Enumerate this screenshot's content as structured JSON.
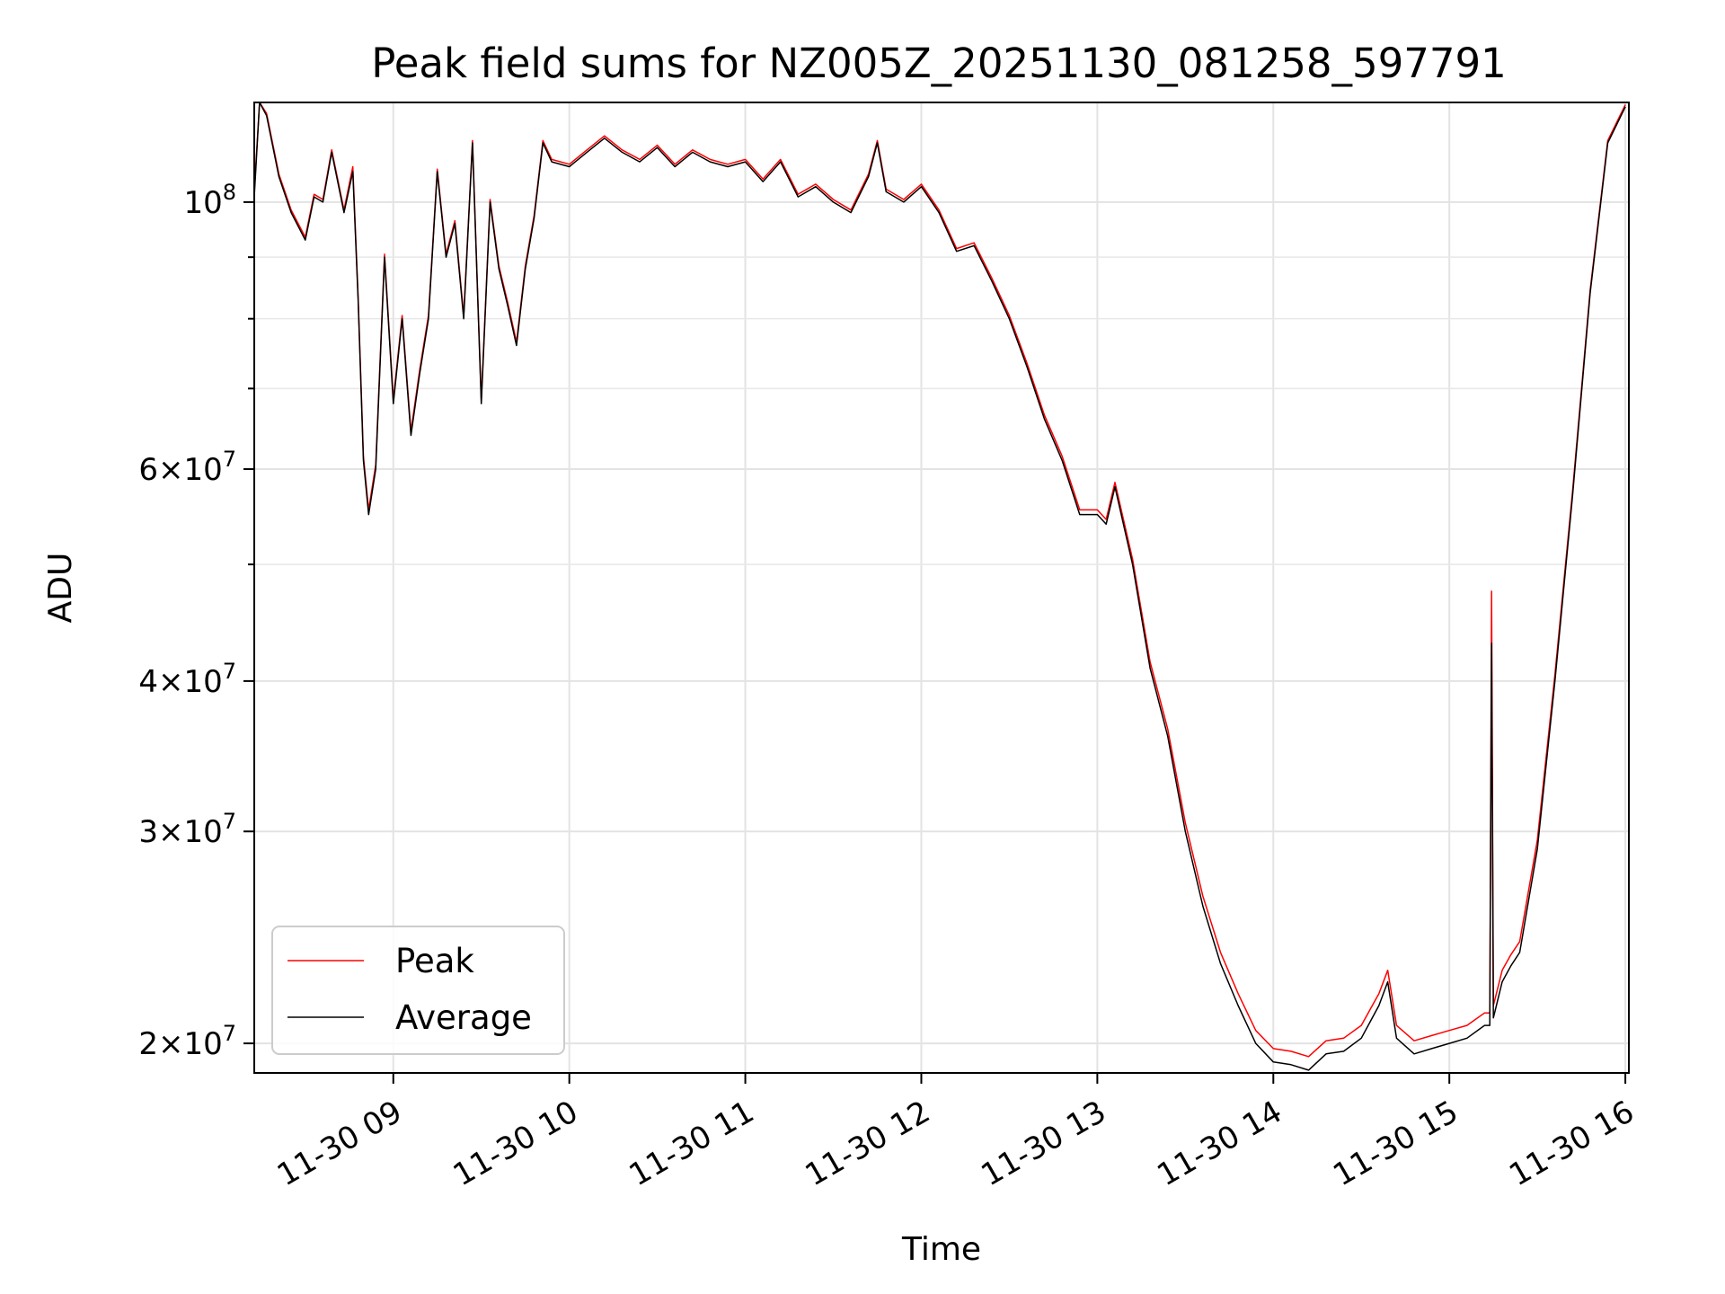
{
  "chart_data": {
    "type": "line",
    "title": "Peak field sums for NZ005Z_20251130_081258_597791",
    "xlabel": "Time",
    "ylabel": "ADU",
    "yscale": "log",
    "grid": true,
    "legend_location": "lower-left",
    "xlim": [
      8.21,
      16.02
    ],
    "ylim": [
      18900000,
      121000000
    ],
    "x_ticks": [
      {
        "value": 9,
        "label": "11-30 09"
      },
      {
        "value": 10,
        "label": "11-30 10"
      },
      {
        "value": 11,
        "label": "11-30 11"
      },
      {
        "value": 12,
        "label": "11-30 12"
      },
      {
        "value": 13,
        "label": "11-30 13"
      },
      {
        "value": 14,
        "label": "11-30 14"
      },
      {
        "value": 15,
        "label": "11-30 15"
      },
      {
        "value": 16,
        "label": "11-30 16"
      }
    ],
    "y_ticks": [
      {
        "value": 20000000,
        "mantissa": "2",
        "exponent": "7"
      },
      {
        "value": 30000000,
        "mantissa": "3",
        "exponent": "7"
      },
      {
        "value": 40000000,
        "mantissa": "4",
        "exponent": "7"
      },
      {
        "value": 60000000,
        "mantissa": "6",
        "exponent": "7"
      },
      {
        "value": 100000000,
        "mantissa": "",
        "exponent": "8"
      }
    ],
    "y_minor_grid": [
      50000000,
      70000000,
      80000000,
      90000000
    ],
    "x_unit": "hours since 2025-11-30 00:00",
    "series": [
      {
        "name": "Average",
        "color": "#000000",
        "x": [
          8.21,
          8.24,
          8.28,
          8.35,
          8.42,
          8.5,
          8.55,
          8.6,
          8.65,
          8.72,
          8.77,
          8.8,
          8.83,
          8.86,
          8.9,
          8.95,
          9.0,
          9.05,
          9.1,
          9.15,
          9.2,
          9.25,
          9.3,
          9.35,
          9.4,
          9.45,
          9.5,
          9.55,
          9.6,
          9.65,
          9.7,
          9.75,
          9.8,
          9.85,
          9.9,
          10.0,
          10.1,
          10.2,
          10.3,
          10.4,
          10.5,
          10.6,
          10.7,
          10.8,
          10.9,
          11.0,
          11.1,
          11.2,
          11.3,
          11.4,
          11.5,
          11.6,
          11.7,
          11.75,
          11.8,
          11.9,
          12.0,
          12.1,
          12.2,
          12.3,
          12.4,
          12.5,
          12.6,
          12.7,
          12.8,
          12.9,
          13.0,
          13.05,
          13.1,
          13.2,
          13.3,
          13.4,
          13.5,
          13.6,
          13.7,
          13.8,
          13.9,
          14.0,
          14.1,
          14.2,
          14.3,
          14.4,
          14.5,
          14.6,
          14.65,
          14.7,
          14.8,
          14.9,
          15.0,
          15.1,
          15.2,
          15.23,
          15.24,
          15.25,
          15.3,
          15.35,
          15.4,
          15.5,
          15.6,
          15.7,
          15.8,
          15.9,
          16.0
        ],
        "values": [
          101000000,
          121000000,
          118000000,
          105000000,
          98000000,
          93000000,
          101000000,
          100000000,
          110000000,
          98000000,
          106000000,
          83000000,
          61000000,
          55000000,
          60000000,
          90000000,
          68000000,
          80000000,
          64000000,
          72000000,
          80000000,
          106000000,
          90000000,
          96000000,
          80000000,
          112000000,
          68000000,
          100000000,
          88000000,
          82000000,
          76000000,
          88000000,
          97000000,
          112000000,
          108000000,
          107000000,
          110000000,
          113000000,
          110000000,
          108000000,
          111000000,
          107000000,
          110000000,
          108000000,
          107000000,
          108000000,
          104000000,
          108000000,
          101000000,
          103000000,
          100000000,
          98000000,
          105000000,
          112000000,
          102000000,
          100000000,
          103000000,
          98000000,
          91000000,
          92000000,
          86000000,
          80000000,
          73000000,
          66000000,
          61000000,
          55000000,
          55000000,
          54000000,
          58000000,
          50000000,
          41000000,
          36000000,
          30000000,
          26000000,
          23300000,
          21500000,
          20000000,
          19300000,
          19200000,
          19000000,
          19600000,
          19700000,
          20200000,
          21500000,
          22500000,
          20200000,
          19600000,
          19800000,
          20000000,
          20200000,
          20700000,
          20700000,
          43000000,
          21000000,
          22500000,
          23200000,
          23800000,
          29000000,
          40000000,
          57000000,
          84000000,
          112000000,
          120000000
        ]
      },
      {
        "name": "Peak",
        "color": "#ff0000",
        "x": [
          8.21,
          8.24,
          8.28,
          8.35,
          8.42,
          8.5,
          8.55,
          8.6,
          8.65,
          8.72,
          8.77,
          8.8,
          8.83,
          8.86,
          8.9,
          8.95,
          9.0,
          9.05,
          9.1,
          9.15,
          9.2,
          9.25,
          9.3,
          9.35,
          9.4,
          9.45,
          9.5,
          9.55,
          9.6,
          9.65,
          9.7,
          9.75,
          9.8,
          9.85,
          9.9,
          10.0,
          10.1,
          10.2,
          10.3,
          10.4,
          10.5,
          10.6,
          10.7,
          10.8,
          10.9,
          11.0,
          11.1,
          11.2,
          11.3,
          11.4,
          11.5,
          11.6,
          11.7,
          11.75,
          11.8,
          11.9,
          12.0,
          12.1,
          12.2,
          12.3,
          12.4,
          12.5,
          12.6,
          12.7,
          12.8,
          12.9,
          13.0,
          13.05,
          13.1,
          13.2,
          13.3,
          13.4,
          13.5,
          13.6,
          13.7,
          13.8,
          13.9,
          14.0,
          14.1,
          14.2,
          14.3,
          14.4,
          14.5,
          14.6,
          14.65,
          14.7,
          14.8,
          14.9,
          15.0,
          15.1,
          15.2,
          15.23,
          15.24,
          15.25,
          15.3,
          15.35,
          15.4,
          15.5,
          15.6,
          15.7,
          15.8,
          15.9,
          16.0
        ],
        "values": [
          102000000,
          121000000,
          118500000,
          105500000,
          98500000,
          93500000,
          101500000,
          100500000,
          110500000,
          98500000,
          107000000,
          83500000,
          61500000,
          55500000,
          60500000,
          90500000,
          68500000,
          80500000,
          64500000,
          72500000,
          80500000,
          106500000,
          90500000,
          96500000,
          80500000,
          112500000,
          68500000,
          100500000,
          88500000,
          82500000,
          76500000,
          88500000,
          97500000,
          112500000,
          108500000,
          107500000,
          110500000,
          113500000,
          110500000,
          108500000,
          111500000,
          107500000,
          110500000,
          108500000,
          107500000,
          108500000,
          104500000,
          108500000,
          101500000,
          103500000,
          100500000,
          98500000,
          105500000,
          112500000,
          102500000,
          100500000,
          103500000,
          98500000,
          91500000,
          92500000,
          86500000,
          80500000,
          73500000,
          66500000,
          61500000,
          55500000,
          55500000,
          54500000,
          58500000,
          50500000,
          41500000,
          36500000,
          30500000,
          26500000,
          23800000,
          22000000,
          20500000,
          19800000,
          19700000,
          19500000,
          20100000,
          20200000,
          20700000,
          22000000,
          23000000,
          20700000,
          20100000,
          20300000,
          20500000,
          20700000,
          21200000,
          21200000,
          47500000,
          21500000,
          23000000,
          23700000,
          24300000,
          29500000,
          40500000,
          57500000,
          84500000,
          112500000,
          120500000
        ]
      }
    ]
  }
}
